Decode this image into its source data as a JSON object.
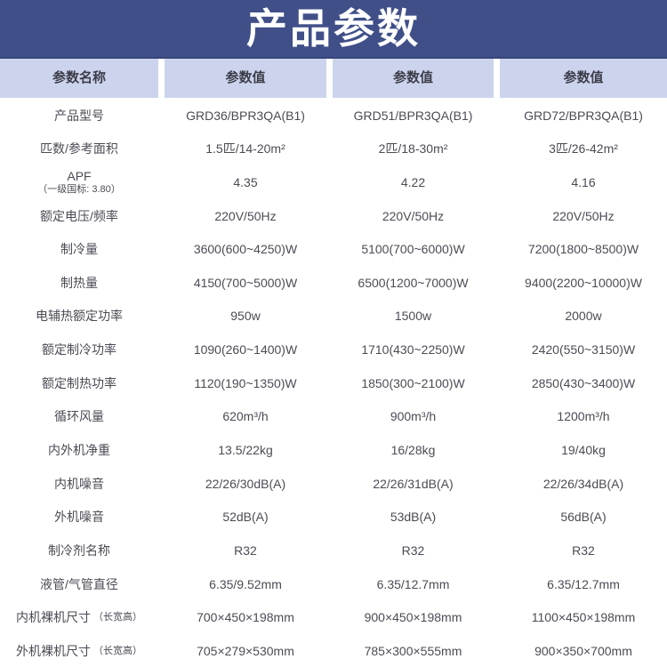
{
  "title": "产品参数",
  "colors": {
    "title_bg": "#404f88",
    "title_border": "#36447a",
    "header_bg": "#ccd4ed",
    "label_light": "#d9dff3",
    "label_dark": "#c2cbe9",
    "row_lavender": "#dfe3f5",
    "row_white": "#ffffff",
    "text": "#4b4b55"
  },
  "table": {
    "headers": [
      "参数名称",
      "参数值",
      "参数值",
      "参数值"
    ],
    "rows": [
      {
        "label": "产品型号",
        "sublabel": "",
        "sublabel_layout": "",
        "values": [
          "GRD36/BPR3QA(B1)",
          "GRD51/BPR3QA(B1)",
          "GRD72/BPR3QA(B1)"
        ]
      },
      {
        "label": "匹数/参考面积",
        "sublabel": "",
        "sublabel_layout": "",
        "values": [
          "1.5匹/14-20m²",
          "2匹/18-30m²",
          "3匹/26-42m²"
        ]
      },
      {
        "label": "APF",
        "sublabel": "（一级国标: 3.80）",
        "sublabel_layout": "below",
        "values": [
          "4.35",
          "4.22",
          "4.16"
        ]
      },
      {
        "label": "额定电压/频率",
        "sublabel": "",
        "sublabel_layout": "",
        "values": [
          "220V/50Hz",
          "220V/50Hz",
          "220V/50Hz"
        ]
      },
      {
        "label": "制冷量",
        "sublabel": "",
        "sublabel_layout": "",
        "values": [
          "3600(600~4250)W",
          "5100(700~6000)W",
          "7200(1800~8500)W"
        ]
      },
      {
        "label": "制热量",
        "sublabel": "",
        "sublabel_layout": "",
        "values": [
          "4150(700~5000)W",
          "6500(1200~7000)W",
          "9400(2200~10000)W"
        ]
      },
      {
        "label": "电辅热额定功率",
        "sublabel": "",
        "sublabel_layout": "",
        "values": [
          "950w",
          "1500w",
          "2000w"
        ]
      },
      {
        "label": "额定制冷功率",
        "sublabel": "",
        "sublabel_layout": "",
        "values": [
          "1090(260~1400)W",
          "1710(430~2250)W",
          "2420(550~3150)W"
        ]
      },
      {
        "label": "额定制热功率",
        "sublabel": "",
        "sublabel_layout": "",
        "values": [
          "1120(190~1350)W",
          "1850(300~2100)W",
          "2850(430~3400)W"
        ]
      },
      {
        "label": "循环风量",
        "sublabel": "",
        "sublabel_layout": "",
        "values": [
          "620m³/h",
          "900m³/h",
          "1200m³/h"
        ]
      },
      {
        "label": "内外机净重",
        "sublabel": "",
        "sublabel_layout": "",
        "values": [
          "13.5/22kg",
          "16/28kg",
          "19/40kg"
        ]
      },
      {
        "label": "内机噪音",
        "sublabel": "",
        "sublabel_layout": "",
        "values": [
          "22/26/30dB(A)",
          "22/26/31dB(A)",
          "22/26/34dB(A)"
        ]
      },
      {
        "label": "外机噪音",
        "sublabel": "",
        "sublabel_layout": "",
        "values": [
          "52dB(A)",
          "53dB(A)",
          "56dB(A)"
        ]
      },
      {
        "label": "制冷剂名称",
        "sublabel": "",
        "sublabel_layout": "",
        "values": [
          "R32",
          "R32",
          "R32"
        ]
      },
      {
        "label": "液管/气管直径",
        "sublabel": "",
        "sublabel_layout": "",
        "values": [
          "6.35/9.52mm",
          "6.35/12.7mm",
          "6.35/12.7mm"
        ]
      },
      {
        "label": "内机裸机尺寸",
        "sublabel": "（长宽高）",
        "sublabel_layout": "inline",
        "values": [
          "700×450×198mm",
          "900×450×198mm",
          "1100×450×198mm"
        ]
      },
      {
        "label": "外机裸机尺寸",
        "sublabel": "（长宽高）",
        "sublabel_layout": "inline",
        "values": [
          "705×279×530mm",
          "785×300×555mm",
          "900×350×700mm"
        ]
      }
    ]
  }
}
